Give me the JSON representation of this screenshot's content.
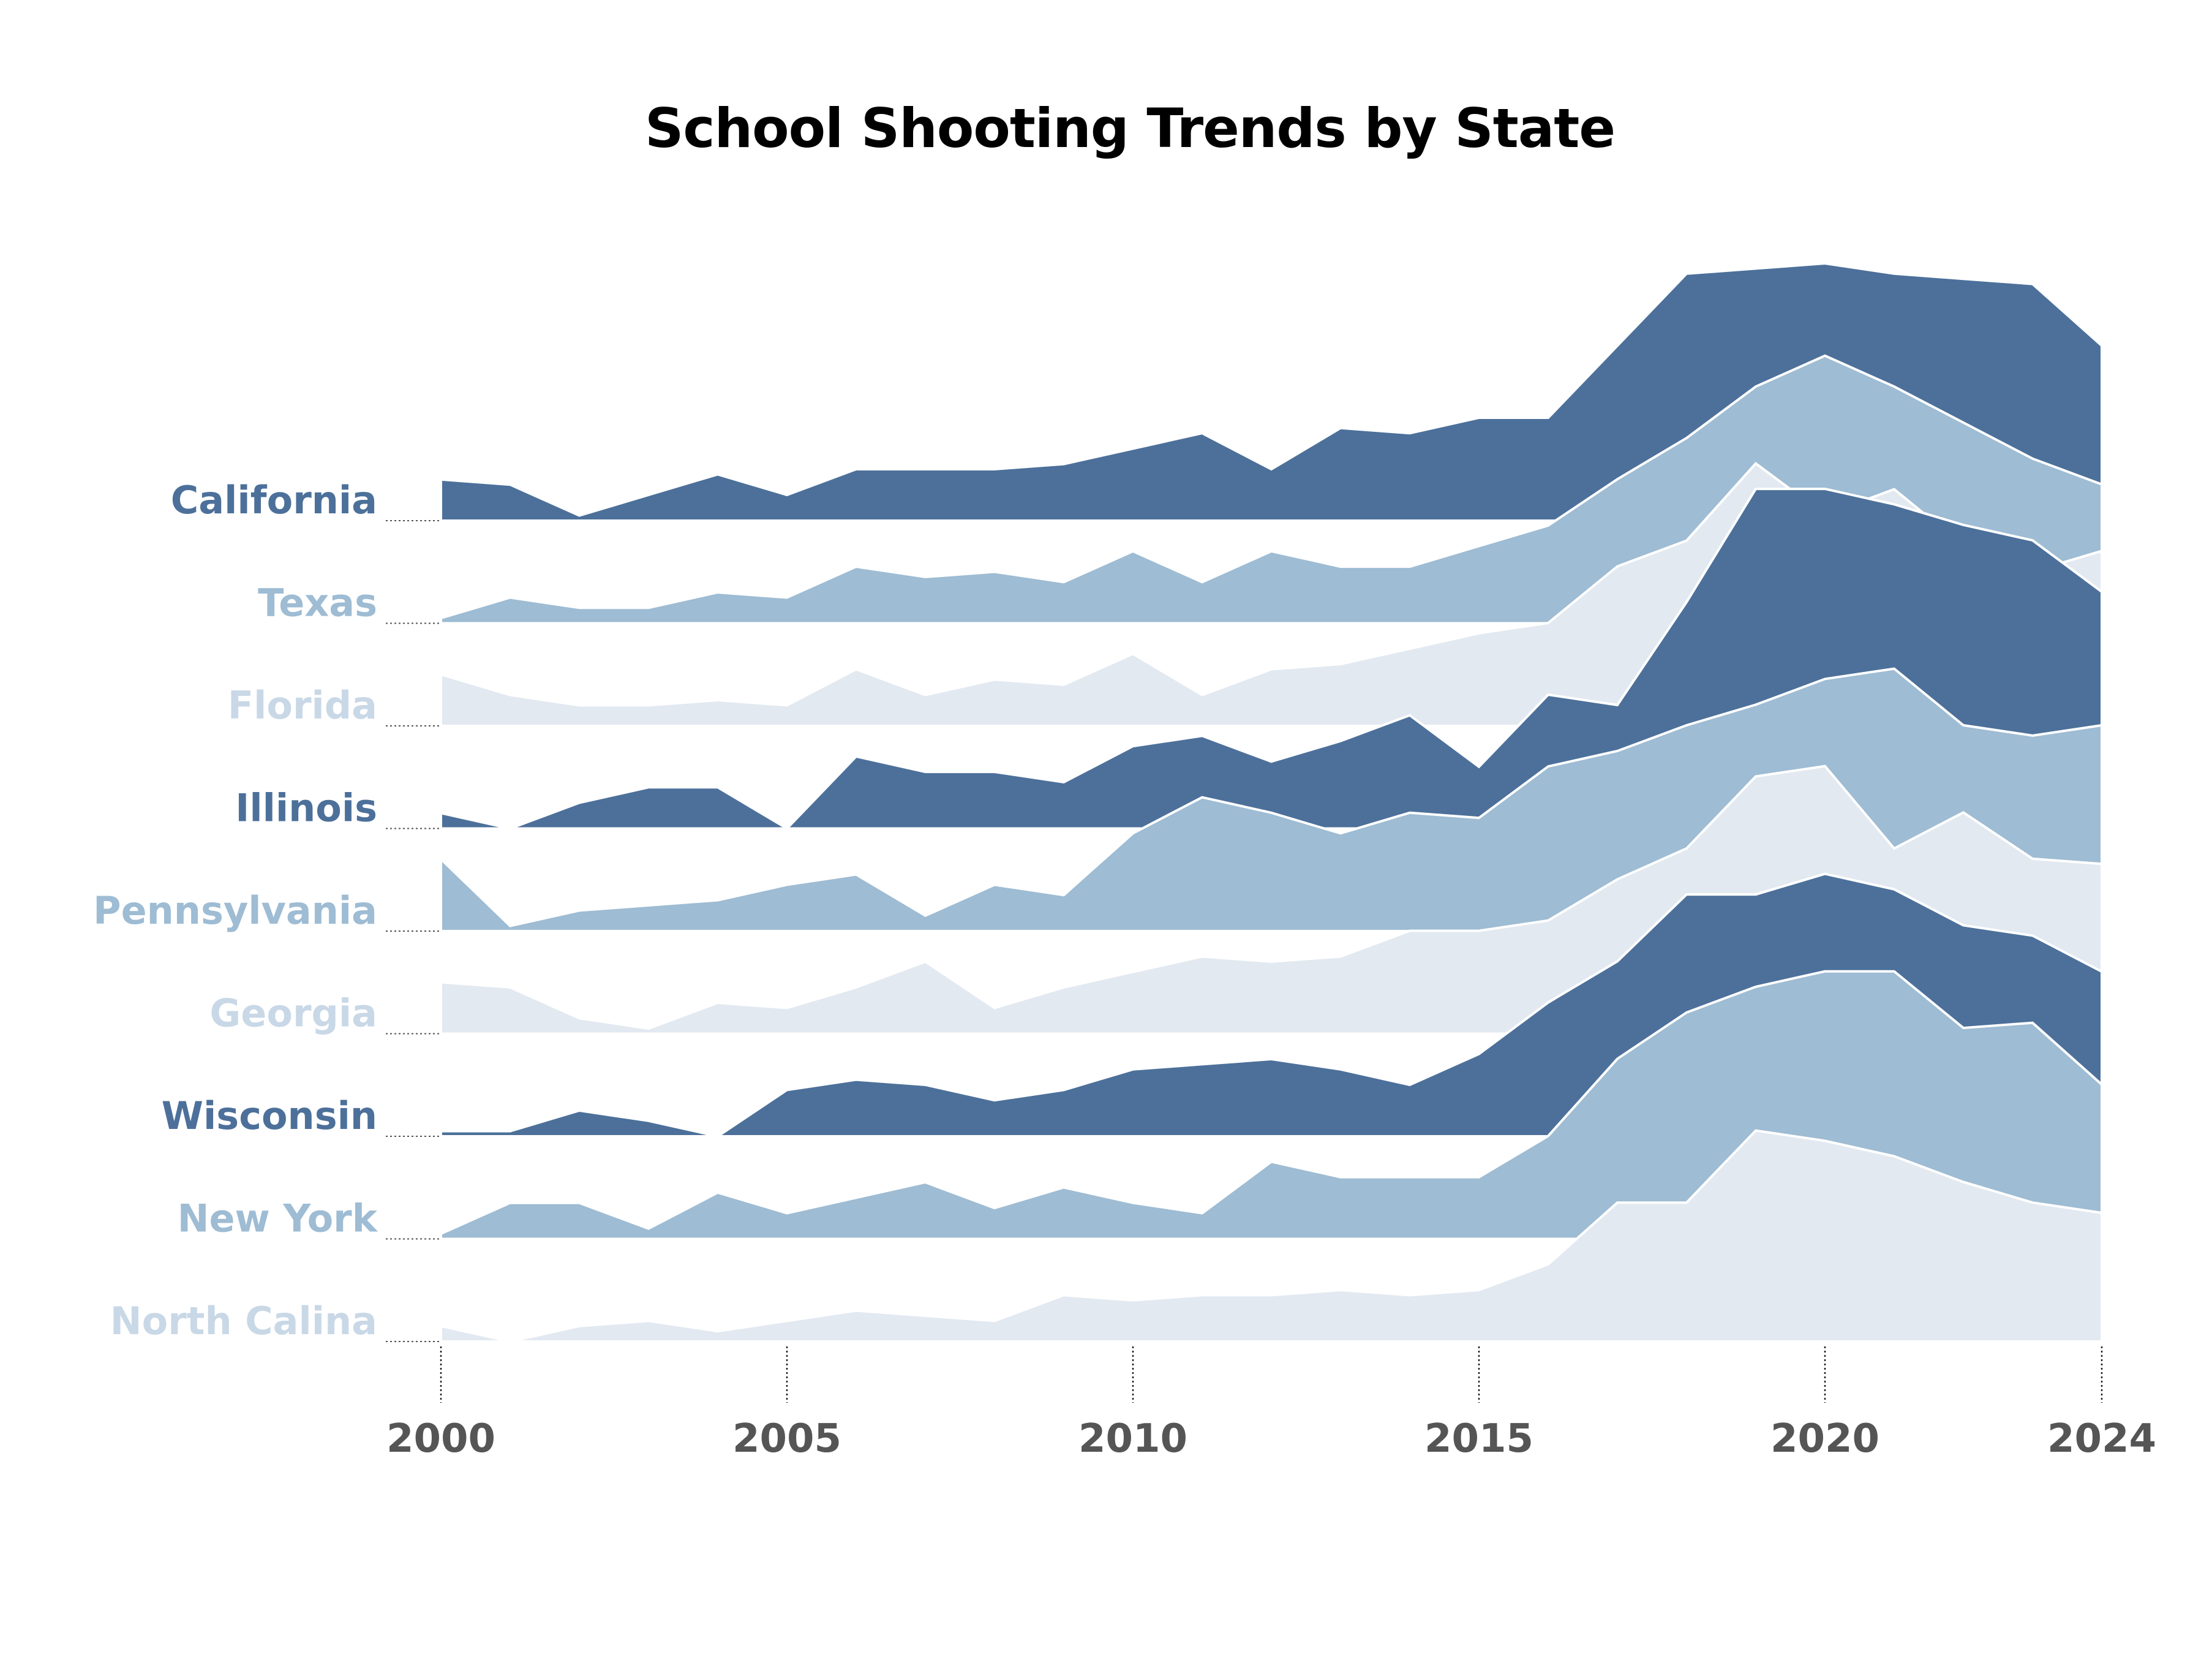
{
  "chart_data": {
    "type": "area",
    "title": "School Shooting Trends by State",
    "x": [
      2000,
      2001,
      2002,
      2003,
      2004,
      2005,
      2006,
      2007,
      2008,
      2009,
      2010,
      2011,
      2012,
      2013,
      2014,
      2015,
      2016,
      2017,
      2018,
      2019,
      2020,
      2021,
      2022,
      2023,
      2024
    ],
    "xticks": [
      2000,
      2005,
      2010,
      2015,
      2020,
      2024
    ],
    "xtick_labels": [
      "2000",
      "2005",
      "2010",
      "2015",
      "2020",
      "2024"
    ],
    "grid": false,
    "legend": "none",
    "colors": {
      "dark": "#4c709a",
      "mid": "#9ebcd3",
      "light": "#e2e9f1"
    },
    "series": [
      {
        "name": "California",
        "color": "#4c709a",
        "values": [
          4,
          3.5,
          0.5,
          2.5,
          4.5,
          2.5,
          5,
          5,
          5,
          5.5,
          7,
          8.5,
          5,
          9,
          8.5,
          10,
          10,
          17,
          24,
          24.5,
          25,
          24,
          23.5,
          23,
          17
        ]
      },
      {
        "name": "Texas",
        "color": "#9ebcd3",
        "values": [
          0.5,
          2.5,
          1.5,
          1.5,
          3,
          2.5,
          5.5,
          4.5,
          5,
          4,
          7,
          4,
          7,
          5.5,
          5.5,
          7.5,
          9.5,
          14,
          18,
          23,
          26,
          23,
          19.5,
          16,
          13.5
        ]
      },
      {
        "name": "Florida",
        "color": "#e2e9f1",
        "values": [
          5,
          3,
          2,
          2,
          2.5,
          2,
          5.5,
          3,
          4.5,
          4,
          7,
          3,
          5.5,
          6,
          7.5,
          9,
          10,
          15.5,
          18,
          25.5,
          20.5,
          23,
          17.5,
          15,
          17
        ]
      },
      {
        "name": "Illinois",
        "color": "#4c709a",
        "values": [
          1.5,
          0,
          2.5,
          4,
          4,
          0,
          7,
          5.5,
          5.5,
          4.5,
          8,
          9,
          6.5,
          8.5,
          11,
          6,
          13,
          12,
          22,
          33,
          33,
          31.5,
          29.5,
          28,
          23
        ]
      },
      {
        "name": "Pennsylvania",
        "color": "#9ebcd3",
        "values": [
          7,
          0.5,
          2,
          2.5,
          3,
          4.5,
          5.5,
          1.5,
          4.5,
          3.5,
          9.5,
          13,
          11.5,
          9.5,
          11.5,
          11,
          16,
          17.5,
          20,
          22,
          24.5,
          25.5,
          20,
          19,
          20
        ]
      },
      {
        "name": "Georgia",
        "color": "#e2e9f1",
        "values": [
          5,
          4.5,
          1.5,
          0.5,
          3,
          2.5,
          4.5,
          7,
          2.5,
          4.5,
          6,
          7.5,
          7,
          7.5,
          10,
          10,
          11,
          15,
          18,
          25,
          26,
          18,
          21.5,
          17,
          16.5
        ]
      },
      {
        "name": "Wisconsin",
        "color": "#4c709a",
        "values": [
          0.5,
          0.5,
          2.5,
          1.5,
          0,
          4.5,
          5.5,
          5,
          3.5,
          4.5,
          6.5,
          7,
          7.5,
          6.5,
          5,
          8,
          13,
          17,
          23.5,
          23.5,
          25.5,
          24,
          20.5,
          19.5,
          16
        ]
      },
      {
        "name": "New York",
        "color": "#9ebcd3",
        "values": [
          0.5,
          3.5,
          3.5,
          1,
          4.5,
          2.5,
          4,
          5.5,
          3,
          5,
          3.5,
          2.5,
          7.5,
          6,
          6,
          6,
          10,
          17.5,
          22,
          24.5,
          26,
          26,
          20.5,
          21,
          15
        ]
      },
      {
        "name": "North Calina",
        "color": "#e2e9f1",
        "values": [
          1.5,
          0,
          1.5,
          2,
          1,
          2,
          3,
          2.5,
          2,
          4.5,
          4,
          4.5,
          4.5,
          5,
          4.5,
          5,
          7.5,
          13.5,
          13.5,
          20.5,
          19.5,
          18,
          15.5,
          13.5,
          12.5
        ]
      }
    ]
  }
}
